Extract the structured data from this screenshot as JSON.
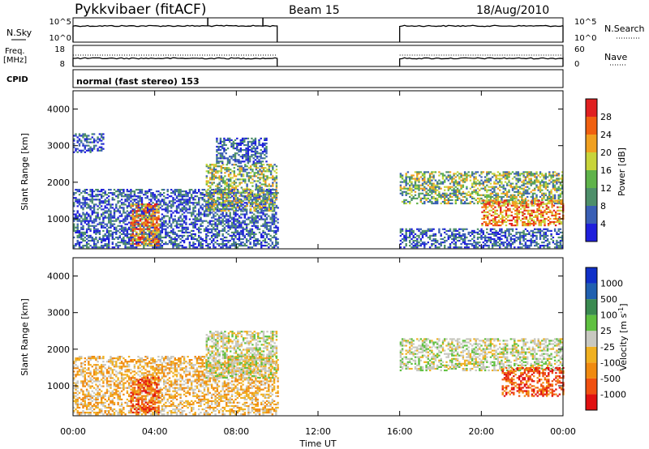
{
  "header": {
    "title": "Pykkvibaer (fitACF)",
    "beam": "Beam 15",
    "date": "18/Aug/2010"
  },
  "param_panels": {
    "nsky_label": "N.Sky",
    "nsearch_label": "N.Search",
    "freq_label_1": "Freq.",
    "freq_label_2": "[MHz]",
    "nave_label": "Nave",
    "cpid_label": "CPID",
    "cpid_value": "normal (fast stereo) 153",
    "noise_ticks_left": [
      "10^5",
      "10^0"
    ],
    "noise_ticks_right": [
      "10^5",
      "10^0"
    ],
    "freq_ticks_left": [
      "18",
      "8"
    ],
    "freq_ticks_right": [
      "60",
      "0"
    ]
  },
  "colors": {
    "power": [
      "#1f1fdc",
      "#3a5fb5",
      "#4e8f6a",
      "#5fb34a",
      "#c8d43a",
      "#f0a020",
      "#f06010",
      "#e02020"
    ],
    "velocity": [
      "#e01010",
      "#f05010",
      "#f08a10",
      "#f0b020",
      "#c8c8c0",
      "#5fc040",
      "#3a8a50",
      "#2060b0",
      "#1030c8"
    ]
  },
  "chart_data": [
    {
      "type": "heatmap",
      "title": "Power",
      "xlabel": "Time UT",
      "ylabel": "Slant Range [km]",
      "x_ticks": [
        "00:00",
        "04:00",
        "08:00",
        "12:00",
        "16:00",
        "20:00",
        "00:00"
      ],
      "xlim_hours": [
        0,
        24
      ],
      "ylim": [
        180,
        4500
      ],
      "y_ticks": [
        1000,
        2000,
        3000,
        4000
      ],
      "colorbar_label": "Power [dB]",
      "colorbar_ticks": [
        "4",
        "8",
        "12",
        "16",
        "20",
        "24",
        "28"
      ],
      "data_gaps_hours": [
        [
          10,
          16
        ]
      ],
      "echo_regions": [
        {
          "t": [
            0,
            10
          ],
          "range": [
            200,
            1800
          ],
          "level": "low"
        },
        {
          "t": [
            0,
            1.5
          ],
          "range": [
            2800,
            3300
          ],
          "level": "low"
        },
        {
          "t": [
            2.8,
            4.2
          ],
          "range": [
            250,
            1400
          ],
          "level": "high"
        },
        {
          "t": [
            6.5,
            10
          ],
          "range": [
            1200,
            2500
          ],
          "level": "medium"
        },
        {
          "t": [
            7,
            9.5
          ],
          "range": [
            2500,
            3200
          ],
          "level": "low"
        },
        {
          "t": [
            16,
            24
          ],
          "range": [
            1400,
            2300
          ],
          "level": "medium"
        },
        {
          "t": [
            20,
            24
          ],
          "range": [
            800,
            1500
          ],
          "level": "high"
        },
        {
          "t": [
            16,
            24
          ],
          "range": [
            200,
            700
          ],
          "level": "low"
        }
      ]
    },
    {
      "type": "heatmap",
      "title": "Velocity",
      "xlabel": "Time UT",
      "ylabel": "Slant Range [km]",
      "x_ticks": [
        "00:00",
        "04:00",
        "08:00",
        "12:00",
        "16:00",
        "20:00",
        "00:00"
      ],
      "xlim_hours": [
        0,
        24
      ],
      "ylim": [
        180,
        4500
      ],
      "y_ticks": [
        1000,
        2000,
        3000,
        4000
      ],
      "colorbar_label": "Velocity [m s-1]",
      "colorbar_label_parts": {
        "main": "Velocity [m s",
        "sup": "-1",
        "close": "]"
      },
      "colorbar_ticks": [
        "-1000",
        "-500",
        "-100",
        "-25",
        "25",
        "100",
        "500",
        "1000"
      ],
      "data_gaps_hours": [
        [
          10,
          16
        ]
      ],
      "echo_regions": [
        {
          "t": [
            0,
            10
          ],
          "range": [
            200,
            1800
          ],
          "level": "negative"
        },
        {
          "t": [
            2.8,
            4.2
          ],
          "range": [
            250,
            1200
          ],
          "level": "strong-negative"
        },
        {
          "t": [
            6.5,
            10
          ],
          "range": [
            1200,
            2500
          ],
          "level": "near-zero"
        },
        {
          "t": [
            16,
            24
          ],
          "range": [
            1400,
            2300
          ],
          "level": "near-zero"
        },
        {
          "t": [
            21,
            24
          ],
          "range": [
            700,
            1500
          ],
          "level": "strong-negative"
        }
      ]
    }
  ]
}
